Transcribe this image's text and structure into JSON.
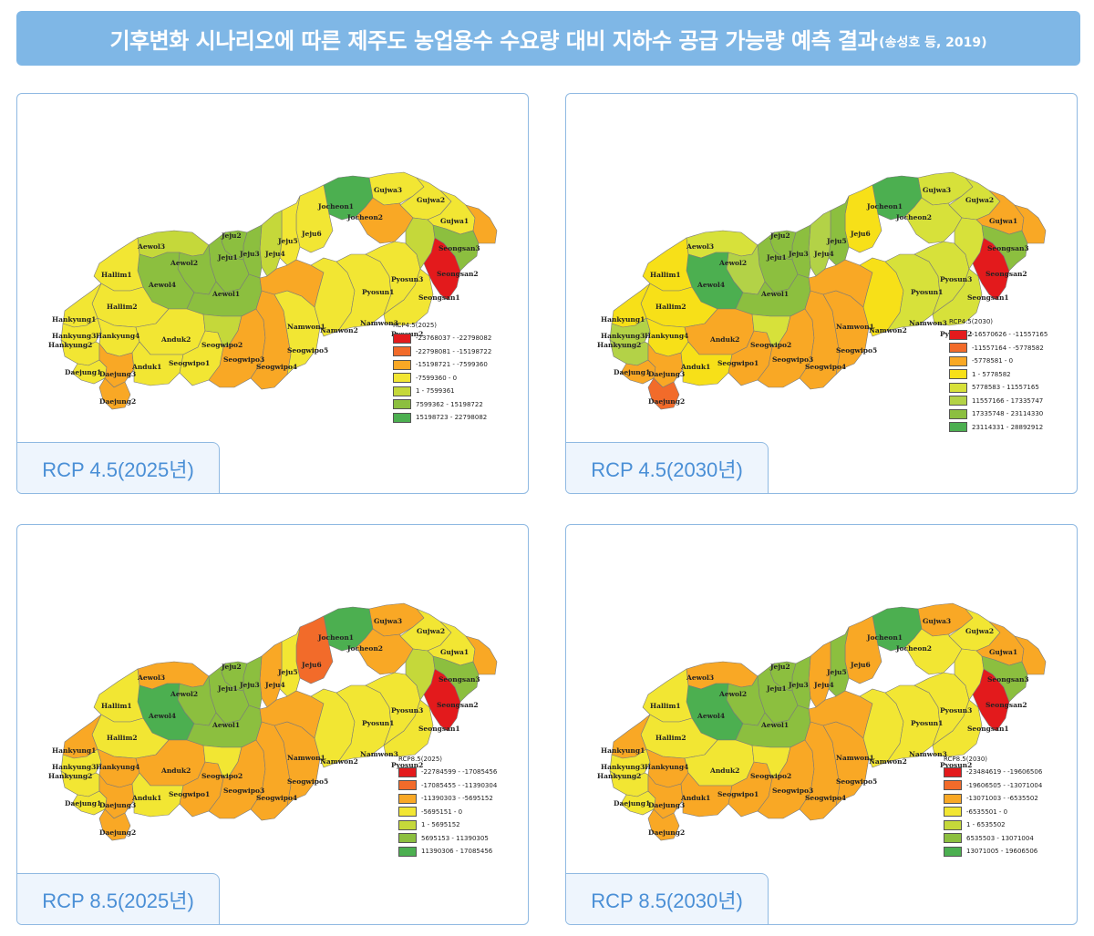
{
  "title": {
    "main": "기후변화 시나리오에 따른 제주도 농업용수 수요량 대비 지하수 공급 가능량 예측 결과",
    "citation": "(송성호 등, 2019)"
  },
  "colors": {
    "title_bg": "#7fb7e6",
    "panel_border": "#8fb9e2",
    "caption_text": "#4a8fd6",
    "class_colors": [
      "#e31a1c",
      "#f26b2a",
      "#f9a825",
      "#f2e633",
      "#c5d83a",
      "#8cbf3f",
      "#4caf50"
    ]
  },
  "regions": [
    {
      "name": "Gujwa3"
    },
    {
      "name": "Gujwa2"
    },
    {
      "name": "Gujwa1"
    },
    {
      "name": "Jocheon1"
    },
    {
      "name": "Jocheon2"
    },
    {
      "name": "Jeju6"
    },
    {
      "name": "Jeju5"
    },
    {
      "name": "Jeju4"
    },
    {
      "name": "Jeju3"
    },
    {
      "name": "Jeju2"
    },
    {
      "name": "Jeju1"
    },
    {
      "name": "Aewol3"
    },
    {
      "name": "Aewol2"
    },
    {
      "name": "Aewol4"
    },
    {
      "name": "Aewol1"
    },
    {
      "name": "Hallim1"
    },
    {
      "name": "Hallim2"
    },
    {
      "name": "Hankyung1"
    },
    {
      "name": "Hankyung3"
    },
    {
      "name": "Hankyung4"
    },
    {
      "name": "Hankyung2"
    },
    {
      "name": "Daejung1"
    },
    {
      "name": "Daejung3"
    },
    {
      "name": "Daejung2"
    },
    {
      "name": "Anduk2"
    },
    {
      "name": "Anduk1"
    },
    {
      "name": "Seogwipo1"
    },
    {
      "name": "Seogwipo2"
    },
    {
      "name": "Seogwipo3"
    },
    {
      "name": "Seogwipo4"
    },
    {
      "name": "Seogwipo5"
    },
    {
      "name": "Namwon1"
    },
    {
      "name": "Namwon2"
    },
    {
      "name": "Namwon3"
    },
    {
      "name": "Pyosun1"
    },
    {
      "name": "Pyosun2"
    },
    {
      "name": "Pyosun3"
    },
    {
      "name": "Seongsan1"
    },
    {
      "name": "Seongsan2"
    },
    {
      "name": "Seongsan3"
    }
  ],
  "panels": [
    {
      "caption": "RCP 4.5(2025년)",
      "legend_title": "RCP4.5(2025)",
      "legend": [
        "-23768037 - -22798082",
        "-22798081 - -15198722",
        "-15198721 - -7599360",
        "-7599360 - 0",
        "1 - 7599361",
        "7599362 - 15198722",
        "15198723 - 22798082"
      ],
      "region_class": {
        "Gujwa3": 3,
        "Gujwa2": 3,
        "Gujwa1": 3,
        "Jocheon1": 6,
        "Jocheon2": 2,
        "Jeju6": 3,
        "Jeju5": 3,
        "Jeju4": 4,
        "Jeju3": 5,
        "Jeju2": 5,
        "Jeju1": 5,
        "Aewol3": 4,
        "Aewol2": 5,
        "Aewol4": 5,
        "Aewol1": 5,
        "Hallim1": 3,
        "Hallim2": 3,
        "Hankyung1": 3,
        "Hankyung3": 3,
        "Hankyung4": 3,
        "Hankyung2": 3,
        "Daejung1": 3,
        "Daejung3": 2,
        "Daejung2": 2,
        "Anduk2": 3,
        "Anduk1": 3,
        "Seogwipo1": 3,
        "Seogwipo2": 4,
        "Seogwipo3": 2,
        "Seogwipo4": 2,
        "Seogwipo5": 3,
        "Namwon1": 2,
        "Namwon2": 3,
        "Namwon3": 3,
        "Pyosun1": 3,
        "Pyosun2": 3,
        "Pyosun3": 4,
        "Seongsan1": 0,
        "Seongsan2": 5,
        "Seongsan3": 2
      }
    },
    {
      "caption": "RCP 4.5(2030년)",
      "legend_title": "RCP4.5(2030)",
      "legend": [
        "-16570626 - -11557165",
        "-11557164 - -5778582",
        "-5778581 - 0",
        "1 - 5778582",
        "5778583 - 11557165",
        "11557166 - 17335747",
        "17335748 - 23114330",
        "23114331 - 28892912"
      ],
      "region_class": {
        "Gujwa3": 4,
        "Gujwa2": 4,
        "Gujwa1": 2,
        "Jocheon1": 7,
        "Jocheon2": 4,
        "Jeju6": 3,
        "Jeju5": 6,
        "Jeju4": 5,
        "Jeju3": 6,
        "Jeju2": 6,
        "Jeju1": 6,
        "Aewol3": 4,
        "Aewol2": 5,
        "Aewol4": 7,
        "Aewol1": 6,
        "Hallim1": 3,
        "Hallim2": 3,
        "Hankyung1": 3,
        "Hankyung3": 5,
        "Hankyung4": 3,
        "Hankyung2": 5,
        "Daejung1": 2,
        "Daejung3": 2,
        "Daejung2": 1,
        "Anduk2": 2,
        "Anduk1": 3,
        "Seogwipo1": 2,
        "Seogwipo2": 4,
        "Seogwipo3": 2,
        "Seogwipo4": 2,
        "Seogwipo5": 2,
        "Namwon1": 2,
        "Namwon2": 3,
        "Namwon3": 4,
        "Pyosun1": 4,
        "Pyosun2": 4,
        "Pyosun3": 4,
        "Seongsan1": 0,
        "Seongsan2": 6,
        "Seongsan3": 2
      }
    },
    {
      "caption": "RCP 8.5(2025년)",
      "legend_title": "RCP8.5(2025)",
      "legend": [
        "-22784599 - -17085456",
        "-17085455 - -11390304",
        "-11390303 - -5695152",
        "-5695151 - 0",
        "1 - 5695152",
        "5695153 - 11390305",
        "11390306 - 17085456"
      ],
      "region_class": {
        "Gujwa3": 2,
        "Gujwa2": 3,
        "Gujwa1": 3,
        "Jocheon1": 6,
        "Jocheon2": 2,
        "Jeju6": 1,
        "Jeju5": 3,
        "Jeju4": 2,
        "Jeju3": 5,
        "Jeju2": 5,
        "Jeju1": 5,
        "Aewol3": 2,
        "Aewol2": 5,
        "Aewol4": 6,
        "Aewol1": 5,
        "Hallim1": 3,
        "Hallim2": 3,
        "Hankyung1": 2,
        "Hankyung3": 3,
        "Hankyung4": 2,
        "Hankyung2": 3,
        "Daejung1": 3,
        "Daejung3": 2,
        "Daejung2": 2,
        "Anduk2": 2,
        "Anduk1": 3,
        "Seogwipo1": 2,
        "Seogwipo2": 3,
        "Seogwipo3": 2,
        "Seogwipo4": 2,
        "Seogwipo5": 2,
        "Namwon1": 2,
        "Namwon2": 3,
        "Namwon3": 3,
        "Pyosun1": 3,
        "Pyosun2": 3,
        "Pyosun3": 4,
        "Seongsan1": 0,
        "Seongsan2": 5,
        "Seongsan3": 2
      }
    },
    {
      "caption": "RCP 8.5(2030년)",
      "legend_title": "RCP8.5(2030)",
      "legend": [
        "-23484619 - -19606506",
        "-19606505 - -13071004",
        "-13071003 - -6535502",
        "-6535501 - 0",
        "1 - 6535502",
        "6535503 - 13071004",
        "13071005 - 19606506"
      ],
      "region_class": {
        "Gujwa3": 2,
        "Gujwa2": 3,
        "Gujwa1": 2,
        "Jocheon1": 6,
        "Jocheon2": 3,
        "Jeju6": 2,
        "Jeju5": 5,
        "Jeju4": 2,
        "Jeju3": 5,
        "Jeju2": 5,
        "Jeju1": 5,
        "Aewol3": 2,
        "Aewol2": 5,
        "Aewol4": 6,
        "Aewol1": 5,
        "Hallim1": 3,
        "Hallim2": 3,
        "Hankyung1": 2,
        "Hankyung3": 3,
        "Hankyung4": 2,
        "Hankyung2": 3,
        "Daejung1": 3,
        "Daejung3": 2,
        "Daejung2": 2,
        "Anduk2": 3,
        "Anduk1": 2,
        "Seogwipo1": 2,
        "Seogwipo2": 3,
        "Seogwipo3": 2,
        "Seogwipo4": 2,
        "Seogwipo5": 2,
        "Namwon1": 2,
        "Namwon2": 3,
        "Namwon3": 3,
        "Pyosun1": 3,
        "Pyosun2": 3,
        "Pyosun3": 3,
        "Seongsan1": 0,
        "Seongsan2": 5,
        "Seongsan3": 2
      }
    }
  ]
}
